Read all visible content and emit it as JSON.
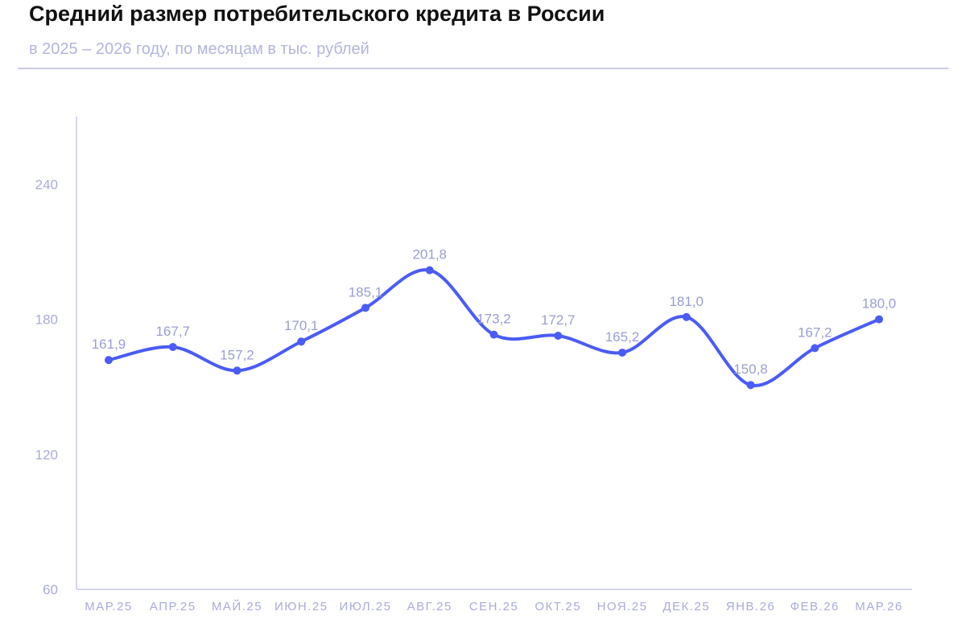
{
  "chart_data": {
    "type": "line",
    "title": "Средний размер потребительского кредита в России",
    "subtitle": "в 2025 – 2026 году, по месяцам в тыс. рублей",
    "categories": [
      "МАР.25",
      "АПР.25",
      "МАЙ.25",
      "ИЮН.25",
      "ИЮЛ.25",
      "АВГ.25",
      "СЕН.25",
      "ОКТ.25",
      "НОЯ.25",
      "ДЕК.25",
      "ЯНВ.26",
      "ФЕВ.26",
      "МАР.26"
    ],
    "values": [
      161.9,
      167.7,
      157.2,
      170.1,
      185.1,
      201.8,
      173.2,
      172.7,
      165.2,
      181.0,
      150.8,
      167.2,
      180.0
    ],
    "data_labels": [
      "161,9",
      "167,7",
      "157,2",
      "170,1",
      "185,1",
      "201,8",
      "173,2",
      "172,7",
      "165,2",
      "181,0",
      "150,8",
      "167,2",
      "180,0"
    ],
    "yticks": [
      60,
      120,
      180,
      240
    ],
    "ylim": [
      60,
      270
    ],
    "grid": false,
    "colors": {
      "line": "#4a5cf5",
      "axis": "#c5c8e6",
      "text": "#a9acd8"
    }
  }
}
